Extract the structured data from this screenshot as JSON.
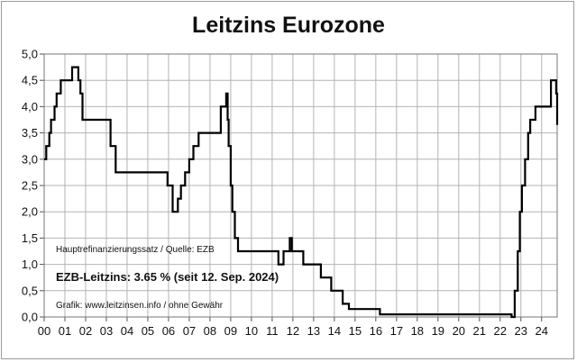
{
  "chart_data": {
    "type": "line",
    "step": true,
    "title": "Leitzins Eurozone",
    "xlabel": "",
    "ylabel": "",
    "xlim": [
      2000,
      2024.75
    ],
    "ylim": [
      0,
      5
    ],
    "ytick_values": [
      0,
      0.5,
      1,
      1.5,
      2,
      2.5,
      3,
      3.5,
      4,
      4.5,
      5
    ],
    "ytick_labels": [
      "0,0",
      "0,5",
      "1,0",
      "1,5",
      "2,0",
      "2,5",
      "3,0",
      "3,5",
      "4,0",
      "4,5",
      "5,0"
    ],
    "xtick_values": [
      2000,
      2001,
      2002,
      2003,
      2004,
      2005,
      2006,
      2007,
      2008,
      2009,
      2010,
      2011,
      2012,
      2013,
      2014,
      2015,
      2016,
      2017,
      2018,
      2019,
      2020,
      2021,
      2022,
      2023,
      2024
    ],
    "xtick_labels": [
      "00",
      "01",
      "02",
      "03",
      "04",
      "05",
      "06",
      "07",
      "08",
      "09",
      "10",
      "11",
      "12",
      "13",
      "14",
      "15",
      "16",
      "17",
      "18",
      "19",
      "20",
      "21",
      "22",
      "23",
      "24"
    ],
    "grid": true,
    "line_color": "#000000",
    "series": [
      {
        "x": [
          2000.0,
          2000.1,
          2000.25,
          2000.33,
          2000.5,
          2000.6,
          2000.8,
          2001.35,
          2001.65,
          2001.75,
          2001.85,
          2003.2,
          2003.45,
          2005.95,
          2006.2,
          2006.45,
          2006.6,
          2006.8,
          2007.0,
          2007.2,
          2007.45,
          2008.52,
          2008.78,
          2008.85,
          2008.9,
          2009.0,
          2009.08,
          2009.2,
          2009.35,
          2011.3,
          2011.55,
          2011.85,
          2011.95,
          2012.5,
          2013.35,
          2013.85,
          2014.4,
          2014.7,
          2016.2,
          2022.55,
          2022.7,
          2022.85,
          2022.95,
          2023.05,
          2023.2,
          2023.35,
          2023.45,
          2023.7,
          2024.45,
          2024.7
        ],
        "y": [
          3.0,
          3.25,
          3.5,
          3.75,
          4.0,
          4.25,
          4.5,
          4.75,
          4.5,
          4.25,
          3.75,
          3.25,
          2.75,
          2.5,
          2.0,
          2.25,
          2.5,
          2.75,
          3.0,
          3.25,
          3.5,
          4.0,
          4.25,
          3.75,
          3.25,
          2.5,
          2.0,
          1.5,
          1.25,
          1.0,
          1.25,
          1.5,
          1.25,
          1.0,
          0.75,
          0.5,
          0.25,
          0.15,
          0.05,
          0.0,
          0.5,
          1.25,
          2.0,
          2.5,
          3.0,
          3.5,
          3.75,
          4.0,
          4.5,
          4.25
        ],
        "x_end": 2024.75,
        "y_end": 3.65
      }
    ]
  },
  "annotations": {
    "source": "Hauptrefinanzierungssatz / Quelle: EZB",
    "current_rate": "EZB-Leitzins: 3.65 % (seit 12. Sep. 2024)",
    "credit": "Grafik: www.leitzinsen.info / ohne Gewähr"
  }
}
